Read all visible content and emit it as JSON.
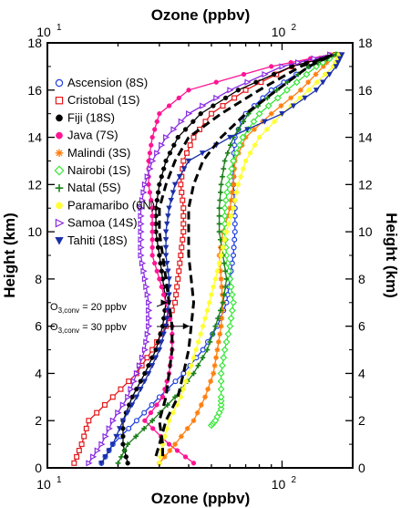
{
  "chart_data": {
    "type": "line",
    "x_scale": "log",
    "xlim": [
      10,
      200
    ],
    "ylim": [
      0,
      18
    ],
    "xlabel_top": "Ozone (ppbv)",
    "xlabel_bottom": "Ozone (ppbv)",
    "ylabel_left": "Height (km)",
    "ylabel_right": "Height (km)",
    "x_ticks": [
      "10",
      "10"
    ],
    "x_tick_exp": [
      "1",
      "2"
    ],
    "y_ticks": [
      "0",
      "2",
      "4",
      "6",
      "8",
      "10",
      "12",
      "14",
      "16",
      "18"
    ],
    "legend_position": "top-left",
    "series": [
      {
        "name": "Ascension (8S)",
        "color": "#1f3fe0",
        "marker": "circle-open",
        "x": [
          17,
          19,
          24,
          30,
          38,
          46,
          53,
          58,
          60,
          62,
          63,
          63,
          62,
          62,
          63,
          70,
          90,
          130,
          175
        ],
        "y": [
          0.2,
          1,
          2,
          3,
          4,
          5,
          6,
          7,
          8,
          9,
          10,
          11,
          12,
          13,
          14,
          15,
          16,
          17,
          17.5
        ]
      },
      {
        "name": "Cristobal (1S)",
        "color": "#e41a1c",
        "marker": "square-open",
        "x": [
          13,
          14,
          15,
          19,
          24,
          28,
          32,
          35,
          36,
          37,
          38,
          38,
          37,
          38,
          42,
          50,
          70,
          110,
          170
        ],
        "y": [
          0.2,
          1,
          2,
          3,
          4,
          5,
          6,
          7,
          8,
          9,
          10,
          11,
          12,
          13,
          14,
          15,
          16,
          17,
          17.5
        ]
      },
      {
        "name": "Fiji (18S)",
        "color": "#000000",
        "marker": "circle-filled",
        "x": [
          22,
          21,
          21,
          23,
          26,
          29,
          31,
          32,
          31,
          30,
          29,
          29,
          30,
          32,
          36,
          45,
          65,
          110,
          170
        ],
        "y": [
          0.2,
          1,
          2,
          3,
          4,
          5,
          6,
          7,
          8,
          9,
          10,
          11,
          12,
          13,
          14,
          15,
          16,
          17,
          17.5
        ]
      },
      {
        "name": "Java (7S)",
        "color": "#ff1493",
        "marker": "circle-filled",
        "x": [
          42,
          33,
          26,
          31,
          33,
          34,
          34,
          32,
          30,
          28,
          28,
          28,
          27,
          27,
          28,
          30,
          40,
          90,
          160
        ],
        "y": [
          0.2,
          1,
          2,
          3,
          4,
          5,
          6,
          7,
          8,
          9,
          10,
          11,
          12,
          13,
          14,
          15,
          16,
          17,
          17.5
        ]
      },
      {
        "name": "Malindi (3S)",
        "color": "#ff7f0e",
        "marker": "asterisk",
        "x": [
          30,
          35,
          42,
          47,
          51,
          53,
          55,
          56,
          55,
          54,
          56,
          60,
          62,
          63,
          70,
          90,
          120,
          150,
          165
        ],
        "y": [
          0.2,
          1,
          2,
          3,
          4,
          5,
          6,
          7,
          8,
          9,
          10,
          11,
          12,
          13,
          14,
          15,
          16,
          17,
          17.5
        ]
      },
      {
        "name": "Nairobi (1S)",
        "color": "#39e639",
        "marker": "diamond-open",
        "x": [
          50,
          52,
          55,
          55,
          55,
          57,
          60,
          62,
          60,
          58,
          57,
          57,
          59,
          62,
          68,
          80,
          105,
          140,
          170
        ],
        "y": [
          1.8,
          2,
          2.5,
          3,
          4,
          5,
          6,
          7,
          8,
          9,
          10,
          11,
          12,
          13,
          14,
          15,
          16,
          17,
          17.5
        ]
      },
      {
        "name": "Natal (5S)",
        "color": "#1a7f1a",
        "marker": "plus",
        "x": [
          20,
          22,
          28,
          35,
          42,
          48,
          52,
          56,
          58,
          56,
          54,
          54,
          55,
          57,
          62,
          72,
          95,
          130,
          170
        ],
        "y": [
          0.2,
          1,
          2,
          3,
          4,
          5,
          6,
          7,
          8,
          9,
          10,
          11,
          12,
          13,
          14,
          15,
          16,
          17,
          17.5
        ]
      },
      {
        "name": "Paramaribo (6N)",
        "color": "#ffff33",
        "marker": "circle-filled",
        "x": [
          30,
          31,
          33,
          37,
          40,
          43,
          46,
          49,
          52,
          55,
          58,
          62,
          65,
          70,
          80,
          100,
          130,
          165,
          175
        ],
        "y": [
          0.2,
          1,
          2,
          3,
          4,
          5,
          6,
          7,
          8,
          9,
          10,
          11,
          12,
          13,
          14,
          15,
          16,
          17,
          17.5
        ]
      },
      {
        "name": "Samoa (14S)",
        "color": "#8a2be2",
        "marker": "triangle-right-open",
        "x": [
          15,
          17,
          19,
          22,
          24,
          26,
          27,
          27,
          26,
          25,
          25,
          25,
          26,
          28,
          32,
          40,
          60,
          100,
          160
        ],
        "y": [
          0.2,
          1,
          2,
          3,
          4,
          5,
          6,
          7,
          8,
          9,
          10,
          11,
          12,
          13,
          14,
          15,
          16,
          17,
          17.5
        ]
      },
      {
        "name": "Tahiti (18S)",
        "color": "#1a2ea8",
        "marker": "triangle-down-filled",
        "x": [
          17,
          19,
          21,
          24,
          27,
          30,
          32,
          33,
          33,
          32,
          32,
          33,
          35,
          40,
          60,
          100,
          140,
          170,
          180
        ],
        "y": [
          0.2,
          1,
          2,
          3,
          4,
          5,
          6,
          7,
          8,
          9,
          10,
          11,
          12,
          13,
          14,
          15,
          16,
          17,
          17.5
        ]
      }
    ],
    "reference_lines": [
      {
        "label_base": "O",
        "label_sub": "3,conv",
        "label_rest": " = 20 ppbv",
        "x": [
          31,
          31,
          30,
          32,
          33,
          34,
          34,
          33,
          32,
          31,
          30,
          30,
          32,
          35,
          40,
          55,
          80,
          120,
          165
        ],
        "y": [
          0.5,
          1,
          2,
          3,
          4,
          5,
          6,
          7,
          8,
          9,
          10,
          11,
          12,
          13,
          14,
          15,
          16,
          17,
          17.5
        ],
        "pointer_y": 7,
        "color": "#000000"
      },
      {
        "label_base": "O",
        "label_sub": "3,conv",
        "label_rest": " = 30 ppbv",
        "x": [
          29,
          30,
          32,
          36,
          38,
          40,
          41,
          42,
          41,
          40,
          40,
          40,
          42,
          46,
          55,
          70,
          95,
          130,
          165
        ],
        "y": [
          0.5,
          1,
          2,
          3,
          4,
          5,
          6,
          7,
          8,
          9,
          10,
          11,
          12,
          13,
          14,
          15,
          16,
          17,
          17.5
        ],
        "pointer_y": 6,
        "color": "#000000"
      }
    ]
  }
}
